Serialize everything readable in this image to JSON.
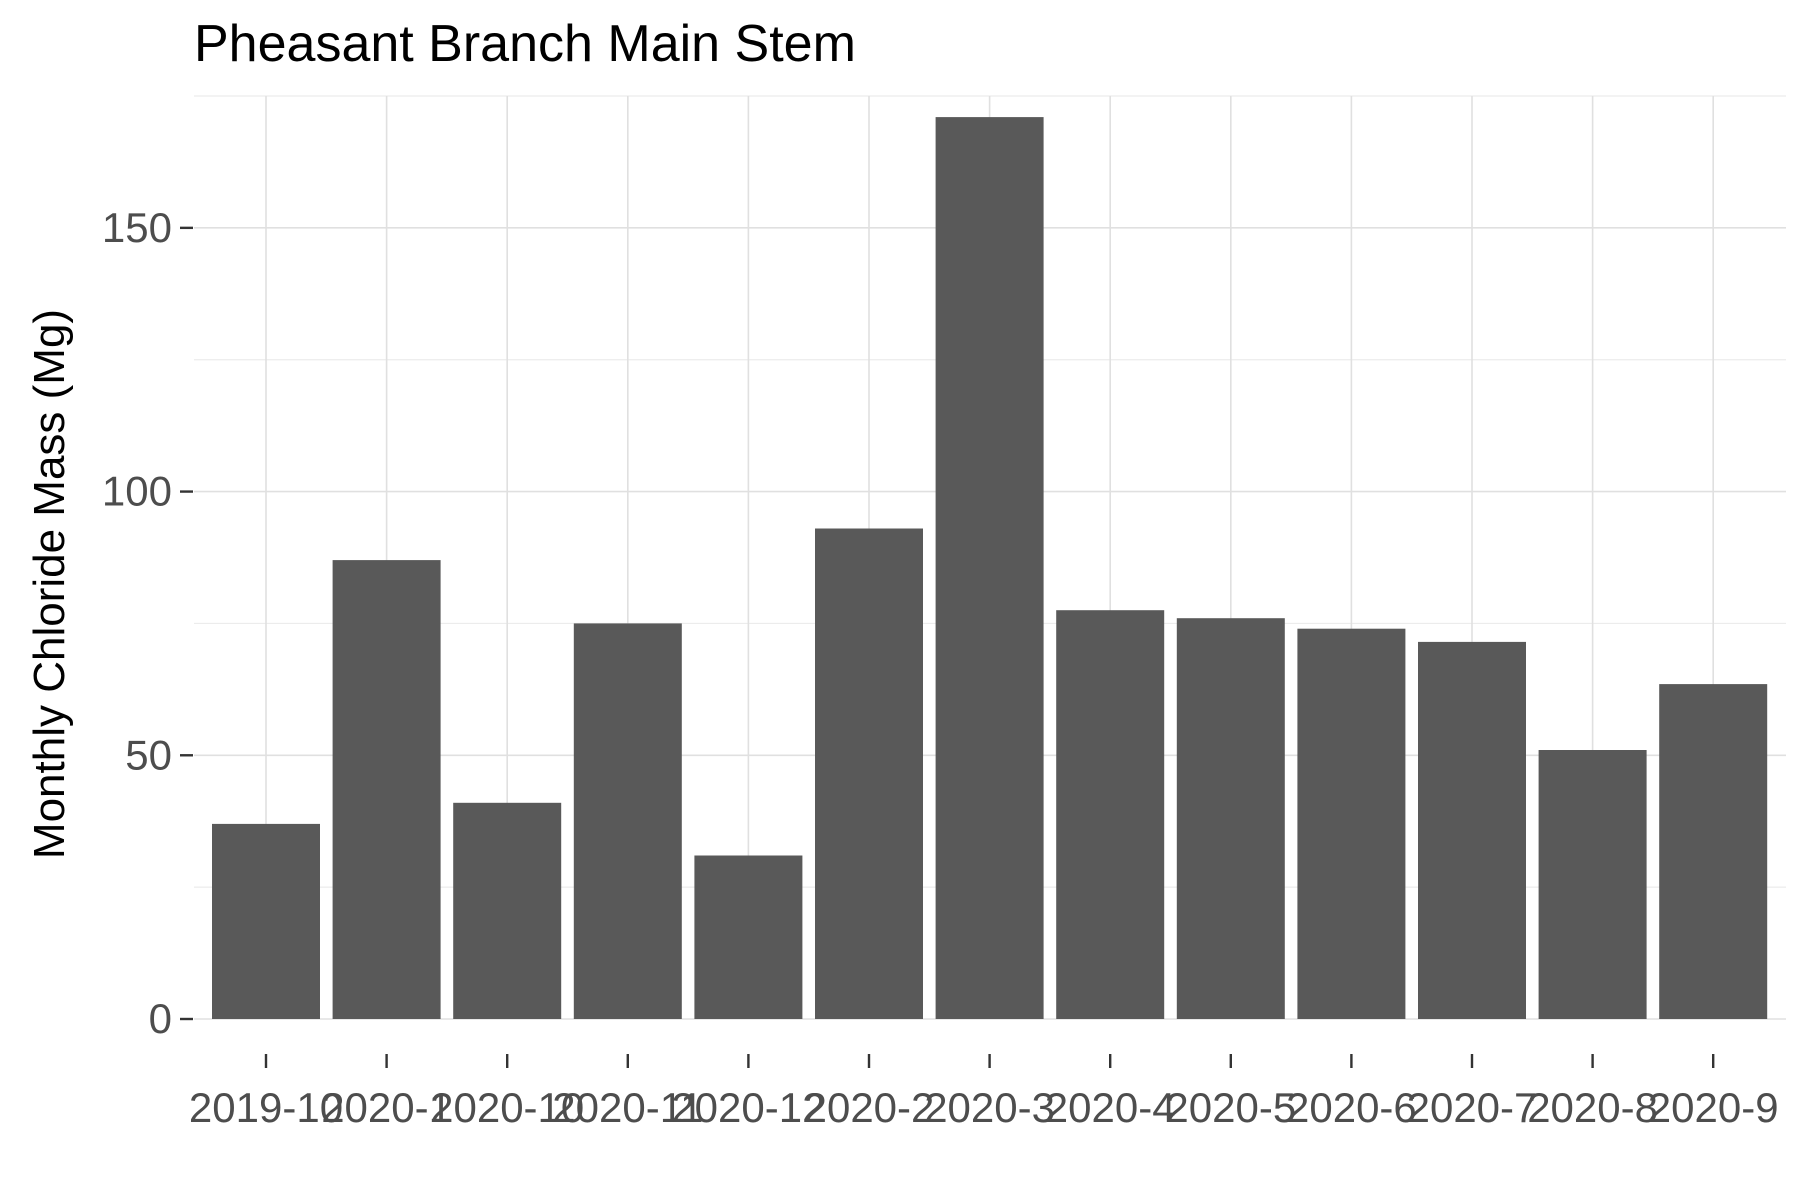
{
  "chart_data": {
    "type": "bar",
    "title": "Pheasant Branch Main Stem",
    "xlabel": "",
    "ylabel": "Monthly Chloride Mass  (Mg)",
    "categories": [
      "2019-10",
      "2020-1",
      "2020-10",
      "2020-11",
      "2020-12",
      "2020-2",
      "2020-3",
      "2020-4",
      "2020-5",
      "2020-6",
      "2020-7",
      "2020-8",
      "2020-9"
    ],
    "values": [
      37,
      87,
      41,
      75,
      31,
      93,
      171,
      77.5,
      76,
      74,
      71.5,
      51,
      63.5
    ],
    "yticks": [
      0,
      50,
      100,
      150
    ],
    "ylim": [
      0,
      175
    ],
    "grid": true,
    "bar_color": "#595959",
    "grid_color": "#e0e0e0"
  }
}
